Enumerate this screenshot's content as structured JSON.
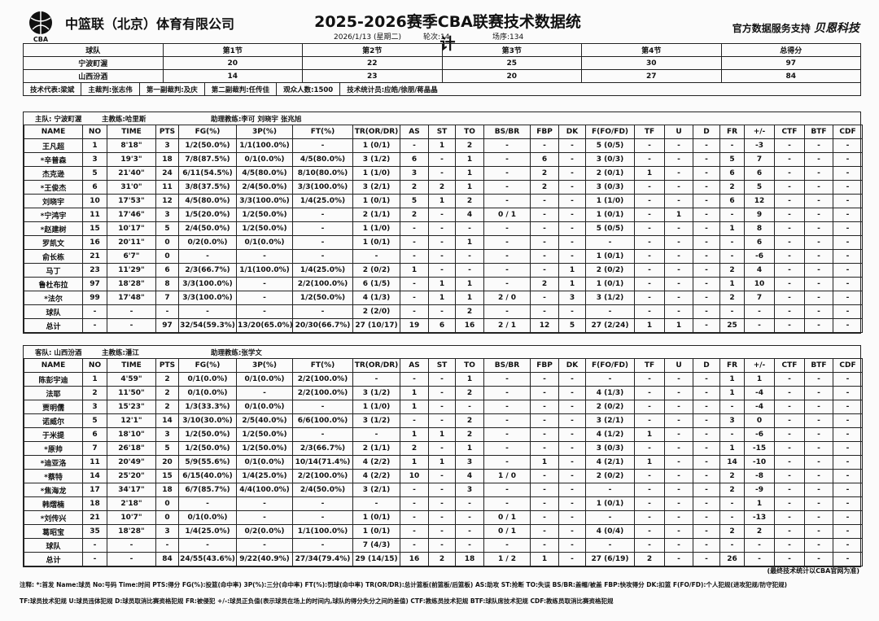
{
  "header": {
    "org": "中篮联（北京）体育有限公司",
    "logo_text": "CBA",
    "title": "2025-2026赛季CBA联赛技术数据统计",
    "date": "2026/1/13 (星期二)",
    "round": "轮次:14",
    "game_no": "场序:134",
    "sponsor_prefix": "官方数据服务支持",
    "sponsor_brand": "贝恩科技"
  },
  "score": {
    "headers": [
      "球队",
      "第1节",
      "第2节",
      "第3节",
      "第4节",
      "总得分"
    ],
    "rows": [
      [
        "宁波町渥",
        "20",
        "22",
        "25",
        "30",
        "97"
      ],
      [
        "山西汾酒",
        "14",
        "23",
        "20",
        "27",
        "84"
      ]
    ]
  },
  "officials": [
    "技术代表:梁斌",
    "主裁判:张志伟",
    "第一副裁判:及庆",
    "第二副裁判:任传佳",
    "观众人数:1500",
    "技术统计员:应皓/徐朋/蒋晶晶"
  ],
  "columns": [
    "NAME",
    "NO",
    "TIME",
    "PTS",
    "FG(%)",
    "3P(%)",
    "FT(%)",
    "TR(OR/DR)",
    "AS",
    "ST",
    "TO",
    "BS/BR",
    "FBP",
    "DK",
    "F(FO/FD)",
    "TF",
    "U",
    "D",
    "FR",
    "+/-",
    "CTF",
    "BTF",
    "CDF"
  ],
  "home": {
    "team": "主队: 宁波町渥",
    "coach": "主教练:哈里斯",
    "assistant": "助理教练:李可 刘晓宇 张兆旭",
    "rows": [
      [
        "王凡超",
        "1",
        "8'18\"",
        "3",
        "1/2(50.0%)",
        "1/1(100.0%)",
        "-",
        "1 (0/1)",
        "-",
        "1",
        "2",
        "-",
        "-",
        "-",
        "5 (0/5)",
        "-",
        "-",
        "-",
        "-",
        "-3",
        "-",
        "-",
        "-"
      ],
      [
        "*辛普森",
        "3",
        "19'3\"",
        "18",
        "7/8(87.5%)",
        "0/1(0.0%)",
        "4/5(80.0%)",
        "3 (1/2)",
        "6",
        "-",
        "1",
        "-",
        "6",
        "-",
        "3 (0/3)",
        "-",
        "-",
        "-",
        "5",
        "7",
        "-",
        "-",
        "-"
      ],
      [
        "杰克逊",
        "5",
        "21'40\"",
        "24",
        "6/11(54.5%)",
        "4/5(80.0%)",
        "8/10(80.0%)",
        "1 (1/0)",
        "3",
        "-",
        "1",
        "-",
        "2",
        "-",
        "2 (0/1)",
        "1",
        "-",
        "-",
        "6",
        "6",
        "-",
        "-",
        "-"
      ],
      [
        "*王俊杰",
        "6",
        "31'0\"",
        "11",
        "3/8(37.5%)",
        "2/4(50.0%)",
        "3/3(100.0%)",
        "3 (2/1)",
        "2",
        "2",
        "1",
        "-",
        "2",
        "-",
        "3 (0/3)",
        "-",
        "-",
        "-",
        "2",
        "5",
        "-",
        "-",
        "-"
      ],
      [
        "刘晓宇",
        "10",
        "17'53\"",
        "12",
        "4/5(80.0%)",
        "3/3(100.0%)",
        "1/4(25.0%)",
        "1 (0/1)",
        "5",
        "1",
        "2",
        "-",
        "-",
        "-",
        "1 (1/0)",
        "-",
        "-",
        "-",
        "6",
        "12",
        "-",
        "-",
        "-"
      ],
      [
        "*宁鸿宇",
        "11",
        "17'46\"",
        "3",
        "1/5(20.0%)",
        "1/2(50.0%)",
        "-",
        "2 (1/1)",
        "2",
        "-",
        "4",
        "0 / 1",
        "-",
        "-",
        "1 (0/1)",
        "-",
        "1",
        "-",
        "-",
        "9",
        "-",
        "-",
        "-"
      ],
      [
        "*赵建树",
        "15",
        "10'17\"",
        "5",
        "2/4(50.0%)",
        "1/2(50.0%)",
        "-",
        "1 (1/0)",
        "-",
        "-",
        "-",
        "-",
        "-",
        "-",
        "5 (0/5)",
        "-",
        "-",
        "-",
        "1",
        "8",
        "-",
        "-",
        "-"
      ],
      [
        "罗凯文",
        "16",
        "20'11\"",
        "0",
        "0/2(0.0%)",
        "0/1(0.0%)",
        "-",
        "1 (0/1)",
        "-",
        "-",
        "1",
        "-",
        "-",
        "-",
        "-",
        "-",
        "-",
        "-",
        "-",
        "6",
        "-",
        "-",
        "-"
      ],
      [
        "俞长栋",
        "21",
        "6'7\"",
        "0",
        "-",
        "-",
        "-",
        "-",
        "-",
        "-",
        "-",
        "-",
        "-",
        "-",
        "1 (0/1)",
        "-",
        "-",
        "-",
        "-",
        "-6",
        "-",
        "-",
        "-"
      ],
      [
        "马丁",
        "23",
        "11'29\"",
        "6",
        "2/3(66.7%)",
        "1/1(100.0%)",
        "1/4(25.0%)",
        "2 (0/2)",
        "1",
        "-",
        "-",
        "-",
        "-",
        "1",
        "2 (0/2)",
        "-",
        "-",
        "-",
        "2",
        "4",
        "-",
        "-",
        "-"
      ],
      [
        "鲁杜布拉",
        "97",
        "18'28\"",
        "8",
        "3/3(100.0%)",
        "-",
        "2/2(100.0%)",
        "6 (1/5)",
        "-",
        "1",
        "1",
        "-",
        "2",
        "1",
        "1 (0/1)",
        "-",
        "-",
        "-",
        "1",
        "10",
        "-",
        "-",
        "-"
      ],
      [
        "*法尔",
        "99",
        "17'48\"",
        "7",
        "3/3(100.0%)",
        "-",
        "1/2(50.0%)",
        "4 (1/3)",
        "-",
        "1",
        "1",
        "2 / 0",
        "-",
        "3",
        "3 (1/2)",
        "-",
        "-",
        "-",
        "2",
        "7",
        "-",
        "-",
        "-"
      ],
      [
        "球队",
        "-",
        "-",
        "-",
        "-",
        "-",
        "-",
        "2 (2/0)",
        "-",
        "-",
        "2",
        "-",
        "-",
        "-",
        "-",
        "-",
        "-",
        "-",
        "-",
        "-",
        "-",
        "-",
        "-"
      ],
      [
        "总计",
        "-",
        "-",
        "97",
        "32/54(59.3%)",
        "13/20(65.0%)",
        "20/30(66.7%)",
        "27 (10/17)",
        "19",
        "6",
        "16",
        "2 / 1",
        "12",
        "5",
        "27 (2/24)",
        "1",
        "1",
        "-",
        "25",
        "-",
        "-",
        "-",
        "-"
      ]
    ]
  },
  "away": {
    "team": "客队: 山西汾酒",
    "coach": "主教练:潘江",
    "assistant": "助理教练:张学文",
    "rows": [
      [
        "陈彭宇迪",
        "1",
        "4'59\"",
        "2",
        "0/1(0.0%)",
        "0/1(0.0%)",
        "2/2(100.0%)",
        "-",
        "-",
        "-",
        "1",
        "-",
        "-",
        "-",
        "-",
        "-",
        "-",
        "-",
        "1",
        "1",
        "-",
        "-",
        "-"
      ],
      [
        "法耶",
        "2",
        "11'50\"",
        "2",
        "0/1(0.0%)",
        "-",
        "2/2(100.0%)",
        "3 (1/2)",
        "1",
        "-",
        "2",
        "-",
        "-",
        "-",
        "4 (1/3)",
        "-",
        "-",
        "-",
        "1",
        "-4",
        "-",
        "-",
        "-"
      ],
      [
        "贾明儒",
        "3",
        "15'23\"",
        "2",
        "1/3(33.3%)",
        "0/1(0.0%)",
        "-",
        "1 (1/0)",
        "1",
        "-",
        "-",
        "-",
        "-",
        "-",
        "2 (0/2)",
        "-",
        "-",
        "-",
        "-",
        "-4",
        "-",
        "-",
        "-"
      ],
      [
        "诺威尔",
        "5",
        "12'1\"",
        "14",
        "3/10(30.0%)",
        "2/5(40.0%)",
        "6/6(100.0%)",
        "3 (1/2)",
        "-",
        "-",
        "2",
        "-",
        "-",
        "-",
        "3 (2/1)",
        "-",
        "-",
        "-",
        "3",
        "0",
        "-",
        "-",
        "-"
      ],
      [
        "于米提",
        "6",
        "18'10\"",
        "3",
        "1/2(50.0%)",
        "1/2(50.0%)",
        "-",
        "-",
        "1",
        "1",
        "2",
        "-",
        "-",
        "-",
        "4 (1/2)",
        "1",
        "-",
        "-",
        "-",
        "-6",
        "-",
        "-",
        "-"
      ],
      [
        "*原帅",
        "7",
        "26'18\"",
        "5",
        "1/2(50.0%)",
        "1/2(50.0%)",
        "2/3(66.7%)",
        "2 (1/1)",
        "2",
        "-",
        "1",
        "-",
        "-",
        "-",
        "3 (0/3)",
        "-",
        "-",
        "-",
        "1",
        "-15",
        "-",
        "-",
        "-"
      ],
      [
        "*迪亚洛",
        "11",
        "20'49\"",
        "20",
        "5/9(55.6%)",
        "0/1(0.0%)",
        "10/14(71.4%)",
        "4 (2/2)",
        "1",
        "1",
        "3",
        "-",
        "1",
        "-",
        "4 (2/1)",
        "1",
        "-",
        "-",
        "14",
        "-10",
        "-",
        "-",
        "-"
      ],
      [
        "*蔡特",
        "14",
        "25'20\"",
        "15",
        "6/15(40.0%)",
        "1/4(25.0%)",
        "2/2(100.0%)",
        "4 (2/2)",
        "10",
        "-",
        "4",
        "1 / 0",
        "-",
        "-",
        "2 (0/2)",
        "-",
        "-",
        "-",
        "2",
        "-8",
        "-",
        "-",
        "-"
      ],
      [
        "*焦海龙",
        "17",
        "34'17\"",
        "18",
        "6/7(85.7%)",
        "4/4(100.0%)",
        "2/4(50.0%)",
        "3 (2/1)",
        "-",
        "-",
        "3",
        "-",
        "-",
        "-",
        "-",
        "-",
        "-",
        "-",
        "2",
        "-9",
        "-",
        "-",
        "-"
      ],
      [
        "韩熠楠",
        "18",
        "2'18\"",
        "0",
        "-",
        "-",
        "-",
        "-",
        "-",
        "-",
        "-",
        "-",
        "-",
        "-",
        "1 (0/1)",
        "-",
        "-",
        "-",
        "-",
        "1",
        "-",
        "-",
        "-"
      ],
      [
        "*刘传兴",
        "21",
        "10'7\"",
        "0",
        "0/1(0.0%)",
        "-",
        "-",
        "1 (0/1)",
        "-",
        "-",
        "-",
        "0 / 1",
        "-",
        "-",
        "-",
        "-",
        "-",
        "-",
        "-",
        "-13",
        "-",
        "-",
        "-"
      ],
      [
        "葛昭宝",
        "35",
        "18'28\"",
        "3",
        "1/4(25.0%)",
        "0/2(0.0%)",
        "1/1(100.0%)",
        "1 (0/1)",
        "-",
        "-",
        "-",
        "0 / 1",
        "-",
        "-",
        "4 (0/4)",
        "-",
        "-",
        "-",
        "2",
        "2",
        "-",
        "-",
        "-"
      ],
      [
        "球队",
        "-",
        "-",
        "-",
        "-",
        "-",
        "-",
        "7 (4/3)",
        "-",
        "-",
        "-",
        "-",
        "-",
        "-",
        "-",
        "-",
        "-",
        "-",
        "-",
        "-",
        "-",
        "-",
        "-"
      ],
      [
        "总计",
        "-",
        "-",
        "84",
        "24/55(43.6%)",
        "9/22(40.9%)",
        "27/34(79.4%)",
        "29 (14/15)",
        "16",
        "2",
        "18",
        "1 / 2",
        "1",
        "-",
        "27 (6/19)",
        "2",
        "-",
        "-",
        "26",
        "-",
        "-",
        "-",
        "-"
      ]
    ]
  },
  "footer": {
    "note": "(最终技术统计以CBA官网为准)",
    "legend1": "注释: *:首发 Name:球员 No:号码 Time:时间 PTS:得分 FG(%):投篮(命中率)  3P(%):三分(命中率)  FT(%):罚球(命中率)  TR(OR/DR):总计篮板(前篮板/后篮板) AS:助攻 ST:抢断 TO:失误 BS/BR:盖帽/被盖 FBP:快攻得分 DK:扣篮 F(FO/FD):个人犯规(进攻犯规/防守犯规)",
    "legend2": "TF:球员技术犯规 U:球员违体犯规 D:球员取消比赛资格犯规 FR:被侵犯 +/-:球员正负值(表示球员在场上的时间内,球队的得分失分之间的差值) CTF:教练员技术犯规 BTF:球队席技术犯规 CDF:教练员取消比赛资格犯规"
  }
}
